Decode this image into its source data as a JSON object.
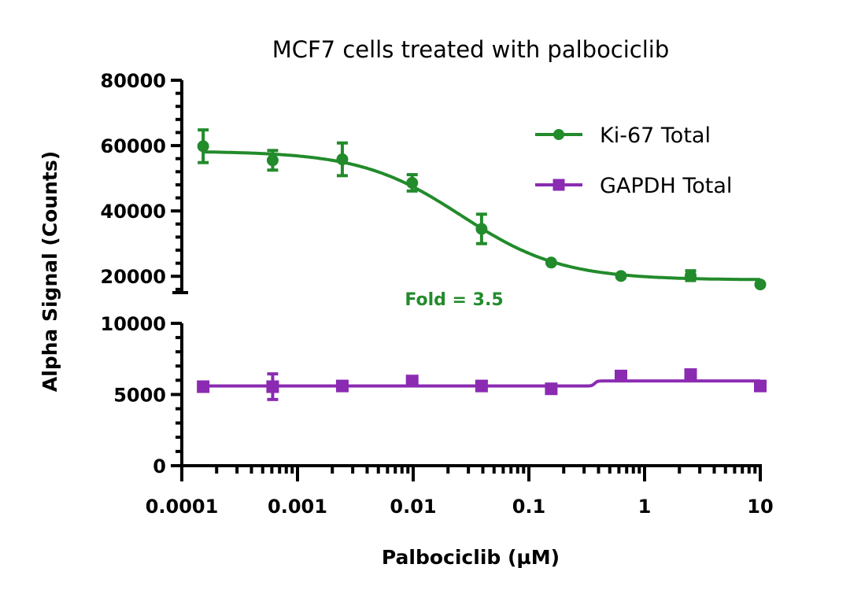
{
  "chart_data": {
    "type": "scatter",
    "title": "MCF7 cells treated with palbociclib",
    "xlabel": "Palbociclib (µM)",
    "ylabel": "Alpha Signal (Counts)",
    "x_scale": "log",
    "xlim": [
      0.0001,
      10
    ],
    "x_ticks": [
      "0.0001",
      "0.001",
      "0.01",
      "0.1",
      "1",
      "10"
    ],
    "y_axis_broken": true,
    "y_segments": [
      {
        "range": [
          0,
          10000
        ],
        "ticks": [
          "0",
          "5000",
          "10000"
        ]
      },
      {
        "range": [
          15000,
          80000
        ],
        "ticks": [
          "20000",
          "40000",
          "60000",
          "80000"
        ]
      }
    ],
    "grid": false,
    "legend_position": "top-right",
    "x": [
      0.000153,
      0.00061,
      0.00244,
      0.0098,
      0.039,
      0.156,
      0.625,
      2.5,
      10
    ],
    "series": [
      {
        "name": "Ki-67 Total",
        "color": "#228b2b",
        "marker": "circle",
        "values": [
          59800,
          55500,
          55800,
          48600,
          34500,
          24200,
          20100,
          20200,
          17500
        ],
        "errors": [
          5000,
          3000,
          5000,
          2500,
          4500,
          700,
          1200,
          1500,
          600
        ],
        "fit": {
          "type": "sigmoidal",
          "top": 58300,
          "bottom": 18900,
          "ic50": 0.026,
          "hill": 1.0
        }
      },
      {
        "name": "GAPDH Total",
        "color": "#8a2bb2",
        "marker": "square",
        "values": [
          5550,
          5550,
          5600,
          5950,
          5600,
          5400,
          6300,
          6400,
          5600
        ],
        "errors": [
          150,
          900,
          150,
          200,
          150,
          150,
          250,
          200,
          150
        ],
        "fit": {
          "type": "step",
          "low": 5600,
          "high": 5950,
          "step_at": 0.37
        }
      }
    ],
    "annotations": [
      {
        "text": "Fold = 3.5",
        "color": "#228b2b"
      }
    ]
  }
}
